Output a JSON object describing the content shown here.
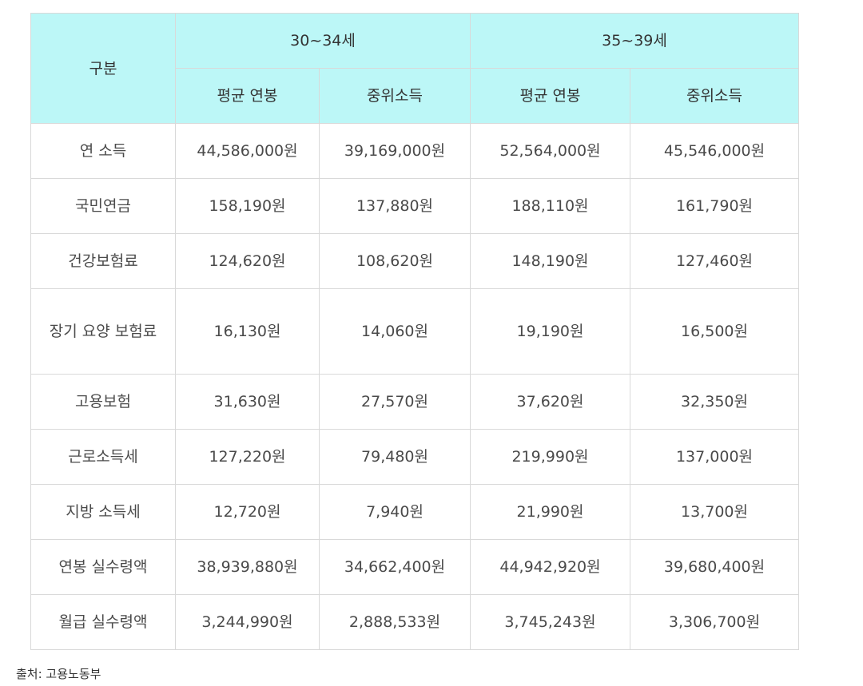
{
  "table": {
    "header": {
      "category_label": "구분",
      "groups": [
        {
          "label": "30~34세",
          "columns": [
            "평균 연봉",
            "중위소득"
          ]
        },
        {
          "label": "35~39세",
          "columns": [
            "평균 연봉",
            "중위소득"
          ]
        }
      ]
    },
    "rows": [
      {
        "label": "연 소득",
        "values": [
          "44,586,000원",
          "39,169,000원",
          "52,564,000원",
          "45,546,000원"
        ]
      },
      {
        "label": "국민연금",
        "values": [
          "158,190원",
          "137,880원",
          "188,110원",
          "161,790원"
        ]
      },
      {
        "label": "건강보험료",
        "values": [
          "124,620원",
          "108,620원",
          "148,190원",
          "127,460원"
        ]
      },
      {
        "label": "장기 요양 보험료",
        "values": [
          "16,130원",
          "14,060원",
          "19,190원",
          "16,500원"
        ]
      },
      {
        "label": "고용보험",
        "values": [
          "31,630원",
          "27,570원",
          "37,620원",
          "32,350원"
        ]
      },
      {
        "label": "근로소득세",
        "values": [
          "127,220원",
          "79,480원",
          "219,990원",
          "137,000원"
        ]
      },
      {
        "label": "지방 소득세",
        "values": [
          "12,720원",
          "7,940원",
          "21,990원",
          "13,700원"
        ]
      },
      {
        "label": "연봉 실수령액",
        "values": [
          "38,939,880원",
          "34,662,400원",
          "44,942,920원",
          "39,680,400원"
        ]
      },
      {
        "label": "월급 실수령액",
        "values": [
          "3,244,990원",
          "2,888,533원",
          "3,745,243원",
          "3,306,700원"
        ]
      }
    ]
  },
  "source": "출처: 고용노동부",
  "colors": {
    "header_bg": "#bcf7f7",
    "border": "#d9d9d9"
  }
}
